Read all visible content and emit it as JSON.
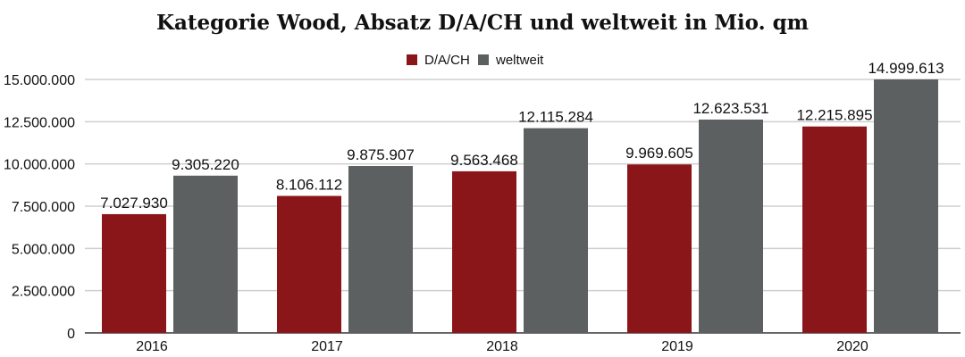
{
  "chart_data": {
    "type": "bar",
    "title": "Kategorie Wood, Absatz D/A/CH und weltweit in Mio. qm",
    "categories": [
      "2016",
      "2017",
      "2018",
      "2019",
      "2020"
    ],
    "series": [
      {
        "name": "D/A/CH",
        "color": "#8b1619",
        "values": [
          7027930,
          8106112,
          9563468,
          9969605,
          12215895
        ],
        "labels": [
          "7.027.930",
          "8.106.112",
          "9.563.468",
          "9.969.605",
          "12.215.895"
        ]
      },
      {
        "name": "weltweit",
        "color": "#5c6060",
        "values": [
          9305220,
          9875907,
          12115284,
          12623531,
          14999613
        ],
        "labels": [
          "9.305.220",
          "9.875.907",
          "12.115.284",
          "12.623.531",
          "14.999.613"
        ]
      }
    ],
    "ylim": [
      0,
      15000000
    ],
    "yticks": [
      0,
      2500000,
      5000000,
      7500000,
      10000000,
      12500000,
      15000000
    ],
    "ytick_labels": [
      "0",
      "2.500.000",
      "5.000.000",
      "7.500.000",
      "10.000.000",
      "12.500.000",
      "15.000.000"
    ],
    "grid": true,
    "legend": "top-center",
    "xlabel": "",
    "ylabel": ""
  }
}
